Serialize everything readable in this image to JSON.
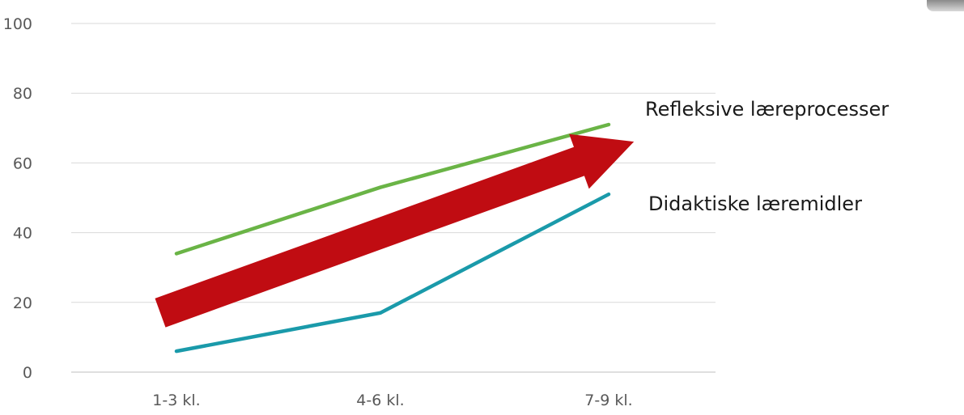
{
  "chart_data": {
    "type": "line",
    "categories": [
      "1-3 kl.",
      "4-6 kl.",
      "7-9 kl."
    ],
    "ylim": [
      0,
      100
    ],
    "yticks": [
      0,
      20,
      40,
      60,
      80,
      100
    ],
    "grid": true,
    "series": [
      {
        "name": "Refleksive læreprocesser",
        "values": [
          34,
          53,
          71
        ],
        "color": "#6ab446"
      },
      {
        "name": "Didaktiske læremidler",
        "values": [
          6,
          17,
          51
        ],
        "color": "#1a9aaa"
      }
    ],
    "annotation": {
      "type": "trend-arrow",
      "color": "#c00c12",
      "from": {
        "x": "1-3 kl.",
        "y": 17
      },
      "to": {
        "x": "7-9 kl.",
        "y": 65
      }
    }
  }
}
